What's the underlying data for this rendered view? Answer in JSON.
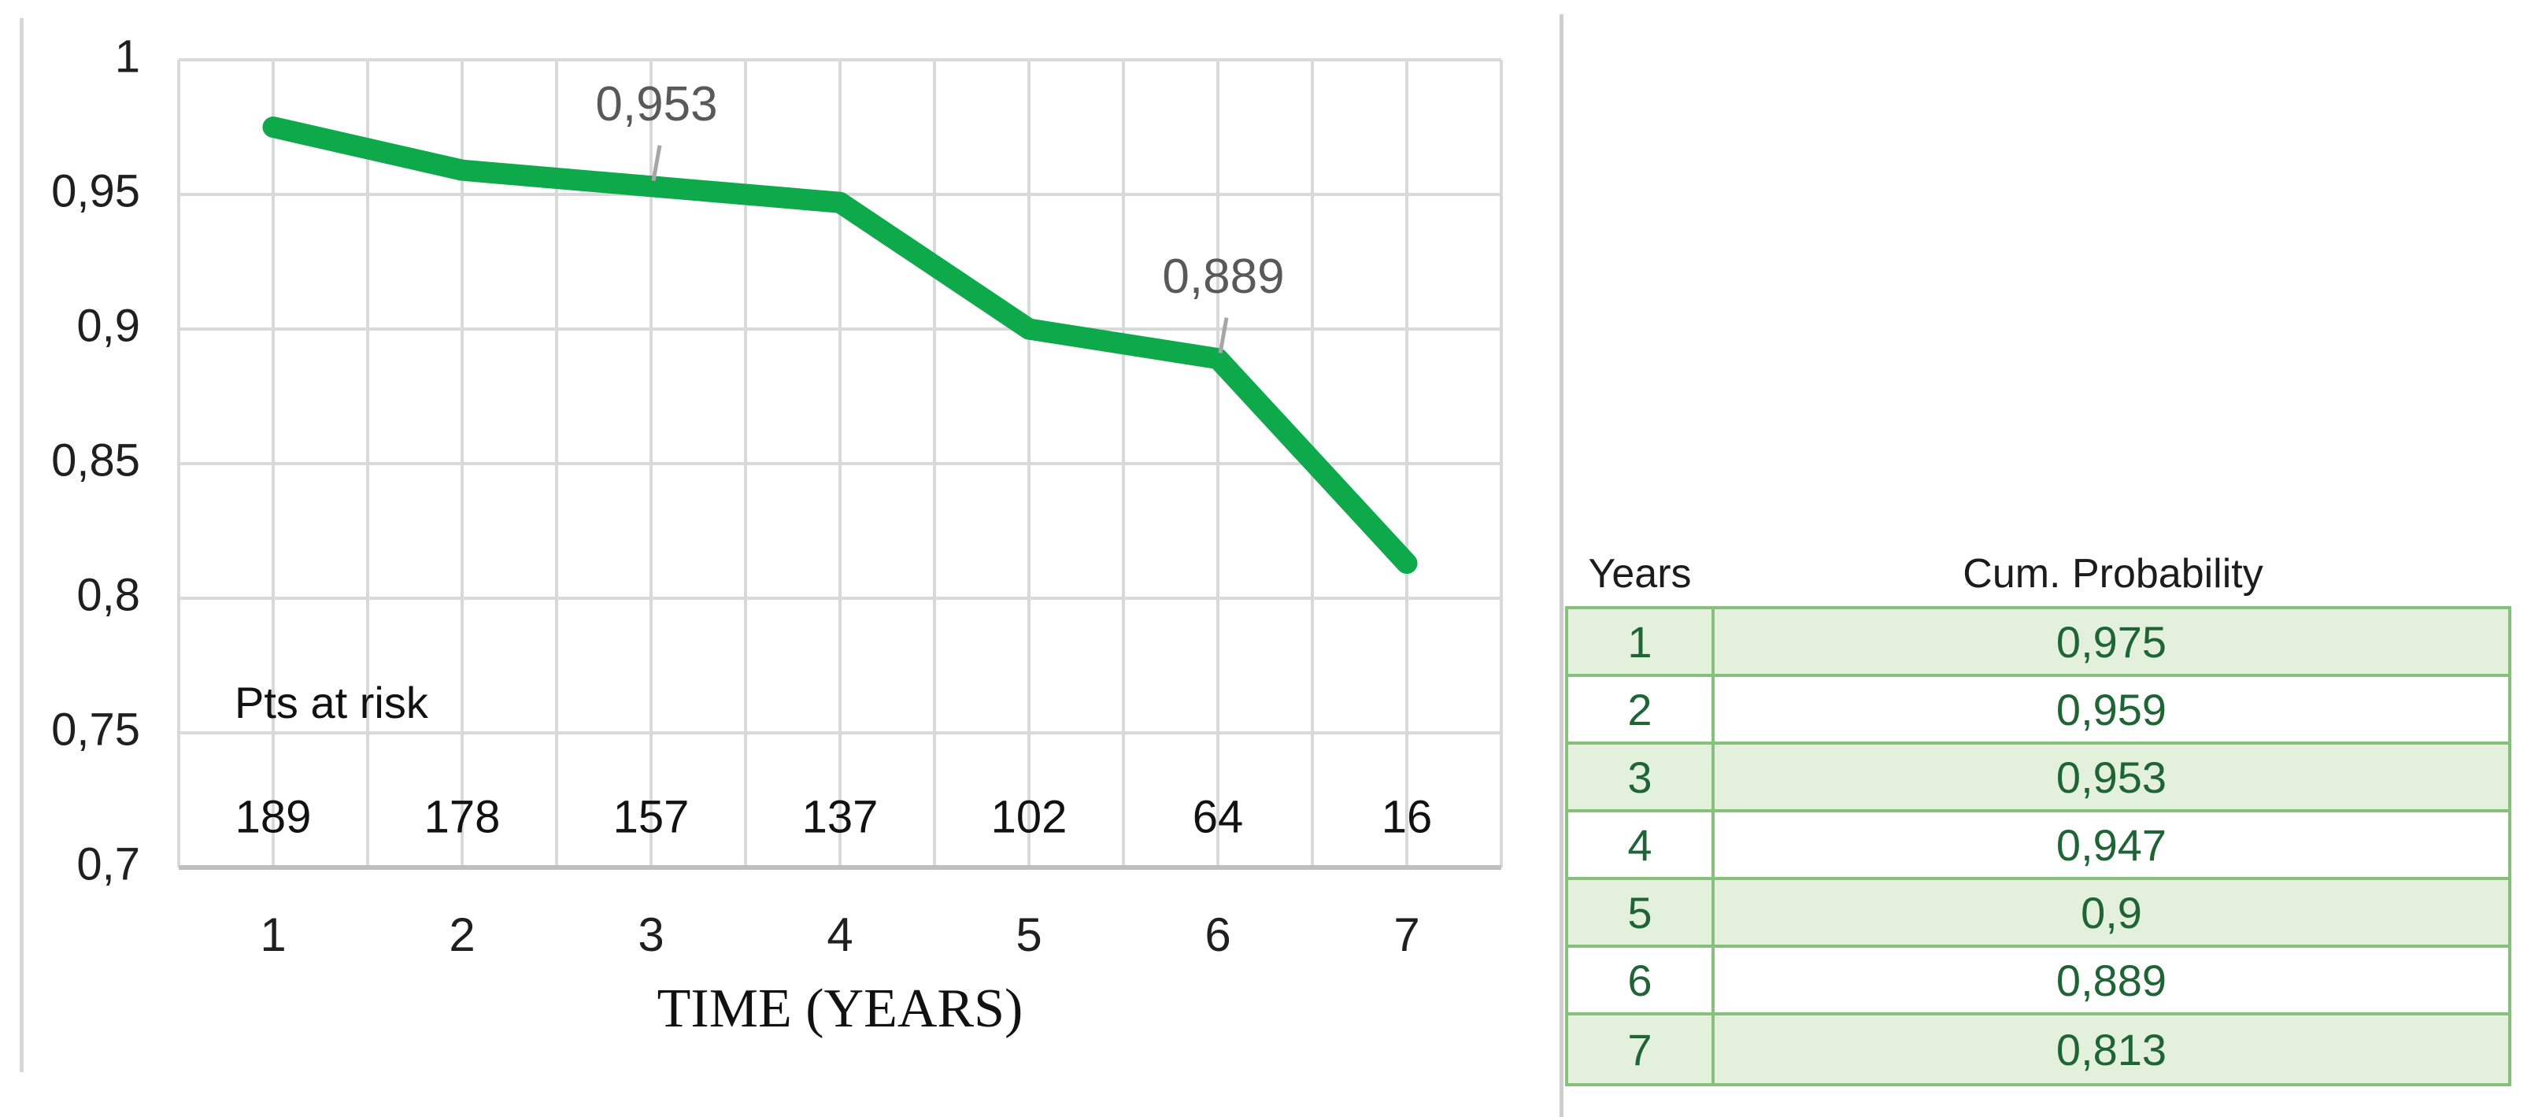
{
  "chart_data": {
    "type": "line",
    "title": "",
    "xlabel": "TIME (YEARS)",
    "ylabel": "",
    "x": [
      1,
      2,
      3,
      4,
      5,
      6,
      7
    ],
    "series": [
      {
        "name": "Cumulative probability",
        "values": [
          0.975,
          0.959,
          0.953,
          0.947,
          0.9,
          0.889,
          0.813
        ]
      }
    ],
    "xlim": [
      0.5,
      7.5
    ],
    "ylim": [
      0.7,
      1.0
    ],
    "ytick_labels": [
      "1",
      "0,95",
      "0,9",
      "0,85",
      "0,8",
      "0,75",
      "0,7"
    ],
    "ytick_values": [
      1.0,
      0.95,
      0.9,
      0.85,
      0.8,
      0.75,
      0.7
    ],
    "xtick_labels": [
      "1",
      "2",
      "3",
      "4",
      "5",
      "6",
      "7"
    ],
    "grid": true,
    "minor_x_grid_step": 0.5,
    "legend_position": "none",
    "point_labels": [
      {
        "year": 3,
        "text": "0,953"
      },
      {
        "year": 6,
        "text": "0,889"
      }
    ],
    "pts_at_risk": {
      "label": "Pts at risk",
      "values": [
        "189",
        "178",
        "157",
        "137",
        "102",
        "64",
        "16"
      ]
    },
    "colors": {
      "line": "#0ea94b",
      "gridline": "#d9d9d9",
      "axis_line": "#bfbfbf",
      "tick_text": "#1f1f1f",
      "point_label_text": "#595959",
      "leader_line": "#a6a6a6"
    }
  },
  "table": {
    "headers": [
      "Years",
      "Cum. Probability"
    ],
    "rows": [
      [
        "1",
        "0,975"
      ],
      [
        "2",
        "0,959"
      ],
      [
        "3",
        "0,953"
      ],
      [
        "4",
        "0,947"
      ],
      [
        "5",
        "0,9"
      ],
      [
        "6",
        "0,889"
      ],
      [
        "7",
        "0,813"
      ]
    ],
    "colors": {
      "row_fill_green": "#e2f0dc",
      "row_fill_white": "#ffffff",
      "border_green": "#85c17b",
      "text_green": "#1e6434",
      "header_text": "#1c1c1c"
    }
  }
}
